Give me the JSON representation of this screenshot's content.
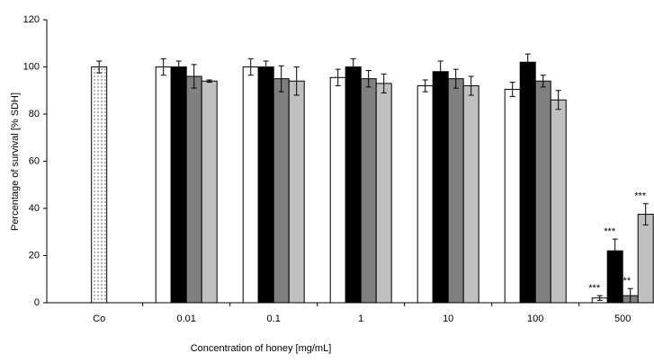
{
  "chart_data": {
    "type": "bar",
    "xlabel": "Concentration of honey [mg/mL]",
    "ylabel": "Percentage of survival [% SDH]",
    "categories": [
      "Co",
      "0.01",
      "0.1",
      "1",
      "10",
      "100",
      "500"
    ],
    "series": [
      {
        "color": "#ffffff",
        "pattern": "dots",
        "values": [
          100,
          null,
          null,
          null,
          null,
          null,
          null
        ],
        "errors": [
          2.5,
          null,
          null,
          null,
          null,
          null,
          null
        ]
      },
      {
        "color": "#ffffff",
        "values": [
          null,
          100,
          100,
          95.5,
          92,
          90.5,
          2
        ],
        "errors": [
          null,
          3.5,
          3.5,
          3.5,
          2.5,
          3,
          1
        ]
      },
      {
        "color": "#000000",
        "values": [
          null,
          100,
          100,
          100,
          98,
          102,
          22
        ],
        "errors": [
          null,
          2.5,
          2.5,
          3.5,
          4.5,
          3.5,
          5
        ]
      },
      {
        "color": "#808080",
        "values": [
          null,
          96,
          95,
          95,
          95,
          94,
          3
        ],
        "errors": [
          null,
          5,
          5.5,
          3.5,
          4,
          2.5,
          3
        ]
      },
      {
        "color": "#c0c0c0",
        "values": [
          null,
          94,
          94,
          93,
          92,
          86,
          37.5
        ],
        "errors": [
          null,
          0.5,
          6,
          4,
          4,
          4,
          4.5
        ]
      }
    ],
    "annotations": [
      "***",
      "***",
      "***",
      "***"
    ],
    "ylim": [
      0,
      120
    ],
    "yticks": [
      0,
      20,
      40,
      60,
      80,
      100,
      120
    ],
    "grid": false
  }
}
